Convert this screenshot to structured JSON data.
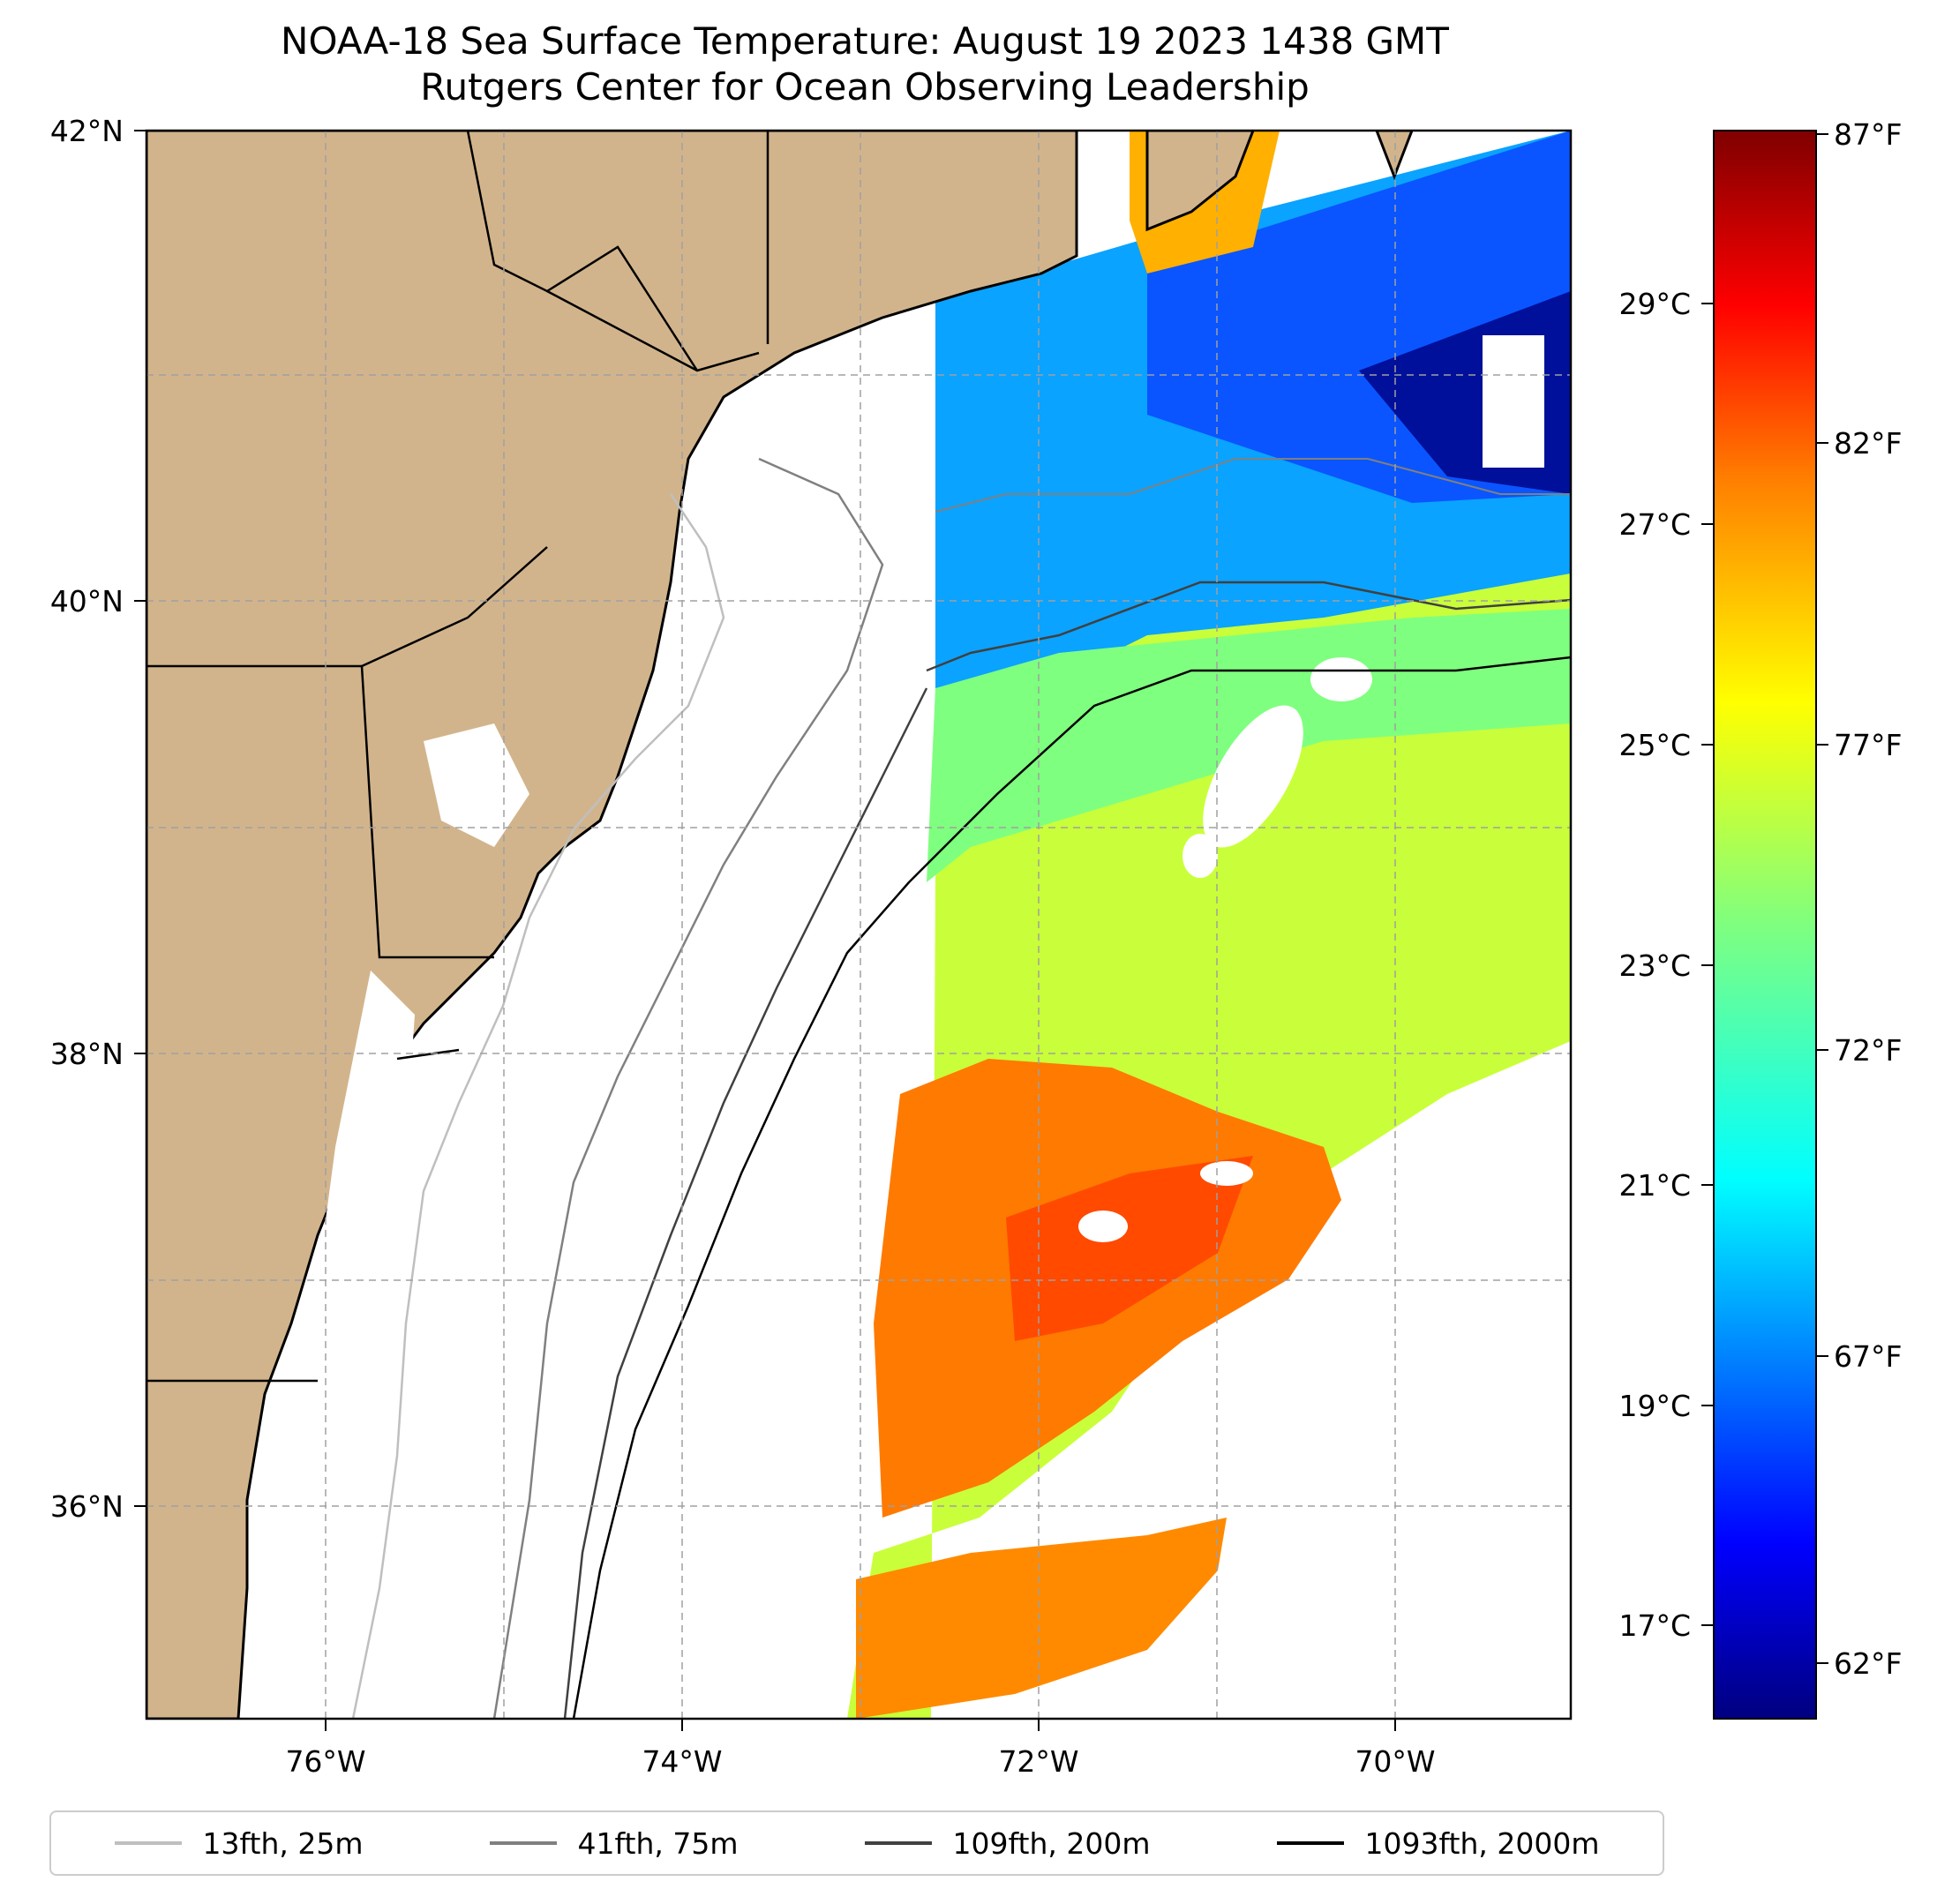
{
  "title": "NOAA-18 Sea Surface Temperature: August 19 2023 1438 GMT",
  "subtitle": "Rutgers Center for Ocean Observing Leadership",
  "map": {
    "lon_range": [
      -77,
      -69
    ],
    "lat_range": [
      35,
      42
    ],
    "lon_ticks": [
      "76°W",
      "74°W",
      "72°W",
      "70°W"
    ],
    "lat_ticks": [
      "42°N",
      "40°N",
      "38°N",
      "36°N"
    ],
    "land_color": "#d2b48c",
    "gridlines": "dashed gray"
  },
  "colorbar": {
    "celsius_ticks": [
      "29°C",
      "27°C",
      "25°C",
      "23°C",
      "21°C",
      "19°C",
      "17°C"
    ],
    "fahrenheit_ticks": [
      "87°F",
      "82°F",
      "77°F",
      "72°F",
      "67°F",
      "62°F"
    ],
    "colormap": "jet",
    "colors": [
      "#00007f",
      "#0000ff",
      "#007fff",
      "#00ffff",
      "#7fff7f",
      "#ffff00",
      "#ff7f00",
      "#ff0000",
      "#7f0000"
    ]
  },
  "legend": [
    {
      "label": "13fth, 25m",
      "color": "#bfbfbf"
    },
    {
      "label": "41fth, 75m",
      "color": "#808080"
    },
    {
      "label": "109fth, 200m",
      "color": "#404040"
    },
    {
      "label": "1093fth, 2000m",
      "color": "#000000"
    }
  ]
}
